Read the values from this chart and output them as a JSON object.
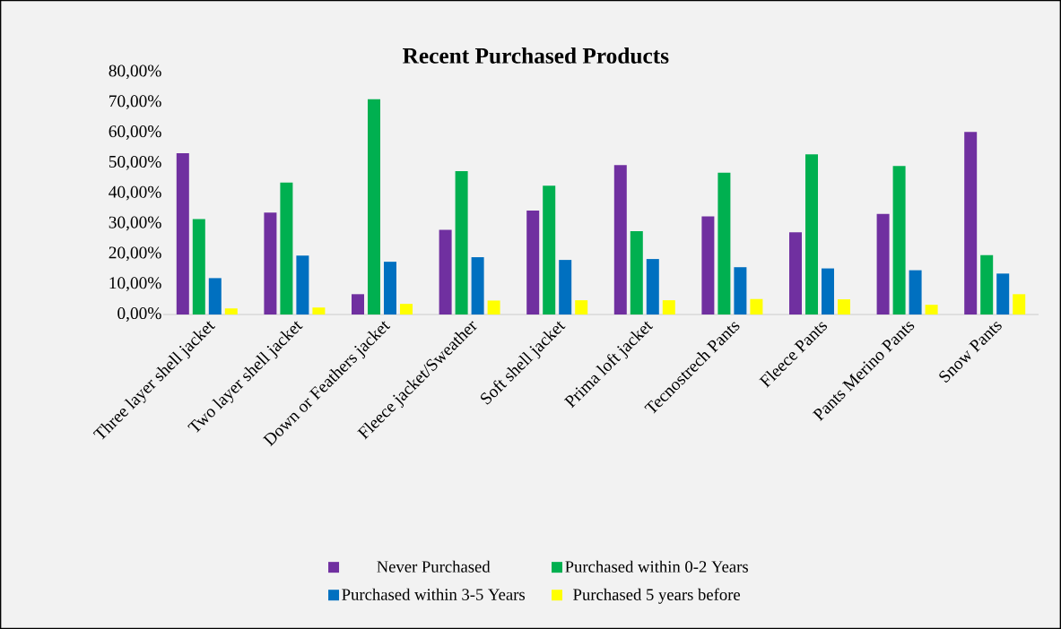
{
  "chart_data": {
    "type": "bar",
    "title": "Recent Purchased Products",
    "categories": [
      "Three layer shell jacket",
      "Two layer shell jacket",
      "Down or Feathers jacket",
      "Fleece jacket/Sweather",
      "Soft shell jacket",
      "Prima loft jacket",
      "Tecnostrech Pants",
      "Fleece Pants",
      "Pants Merino Pants",
      "Snow Pants"
    ],
    "series": [
      {
        "name": "Never Purchased",
        "color": "#7030a0",
        "values": [
          53.2,
          33.6,
          6.7,
          27.9,
          34.3,
          49.3,
          32.4,
          27.1,
          33.2,
          60.2
        ]
      },
      {
        "name": "Purchased within 0-2 Years",
        "color": "#00b050",
        "values": [
          31.5,
          43.5,
          71.0,
          47.3,
          42.5,
          27.5,
          46.8,
          52.8,
          49.0,
          19.6
        ]
      },
      {
        "name": "Purchased within 3-5 Years",
        "color": "#0070c0",
        "values": [
          12.0,
          19.4,
          17.4,
          18.9,
          18.0,
          18.3,
          15.6,
          15.2,
          14.6,
          13.5
        ]
      },
      {
        "name": "Purchased 5 years before",
        "color": "#ffff00",
        "values": [
          2.0,
          2.3,
          3.5,
          4.6,
          4.7,
          4.7,
          5.1,
          5.0,
          3.2,
          6.7
        ]
      }
    ],
    "ylim": [
      0,
      80
    ],
    "yticks": [
      {
        "value": 0,
        "label": "0,00%"
      },
      {
        "value": 10,
        "label": "10,00%"
      },
      {
        "value": 20,
        "label": "20,00%"
      },
      {
        "value": 30,
        "label": "30,00%"
      },
      {
        "value": 40,
        "label": "40,00%"
      },
      {
        "value": 50,
        "label": "50,00%"
      },
      {
        "value": 60,
        "label": "60,00%"
      },
      {
        "value": 70,
        "label": "70,00%"
      },
      {
        "value": 80,
        "label": "80,00%"
      }
    ],
    "grid": false,
    "legend": "bottom"
  }
}
